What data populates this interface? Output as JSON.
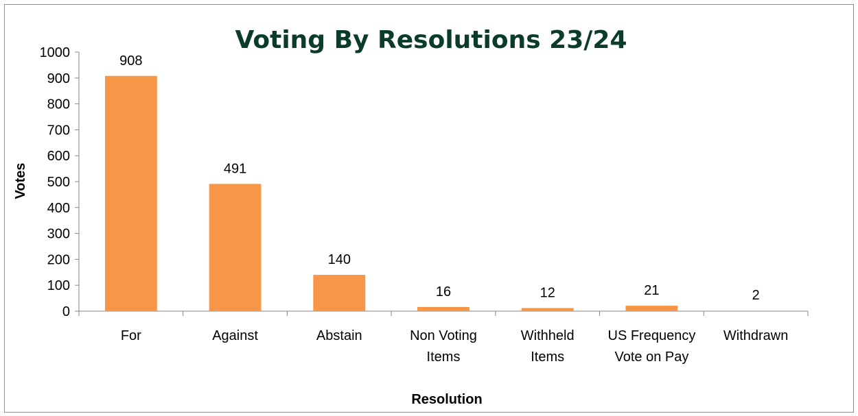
{
  "chart_data": {
    "type": "bar",
    "title": "Voting By Resolutions 23/24",
    "xlabel": "Resolution",
    "ylabel": "Votes",
    "categories": [
      [
        "For"
      ],
      [
        "Against"
      ],
      [
        "Abstain"
      ],
      [
        "Non Voting",
        "Items"
      ],
      [
        "Withheld",
        "Items"
      ],
      [
        "US Frequency",
        "Vote on Pay"
      ],
      [
        "Withdrawn"
      ]
    ],
    "values": [
      908,
      491,
      140,
      16,
      12,
      21,
      2
    ],
    "data_labels": [
      "908",
      "491",
      "140",
      "16",
      "12",
      "21",
      "2"
    ],
    "ylim": [
      0,
      1000
    ],
    "yticks": [
      0,
      100,
      200,
      300,
      400,
      500,
      600,
      700,
      800,
      900,
      1000
    ],
    "ytick_labels": [
      "0",
      "100",
      "200",
      "300",
      "400",
      "500",
      "600",
      "700",
      "800",
      "900",
      "1000"
    ],
    "grid": false,
    "legend": "none",
    "bar_color": "#f79646",
    "title_color": "#0b3b2a"
  }
}
